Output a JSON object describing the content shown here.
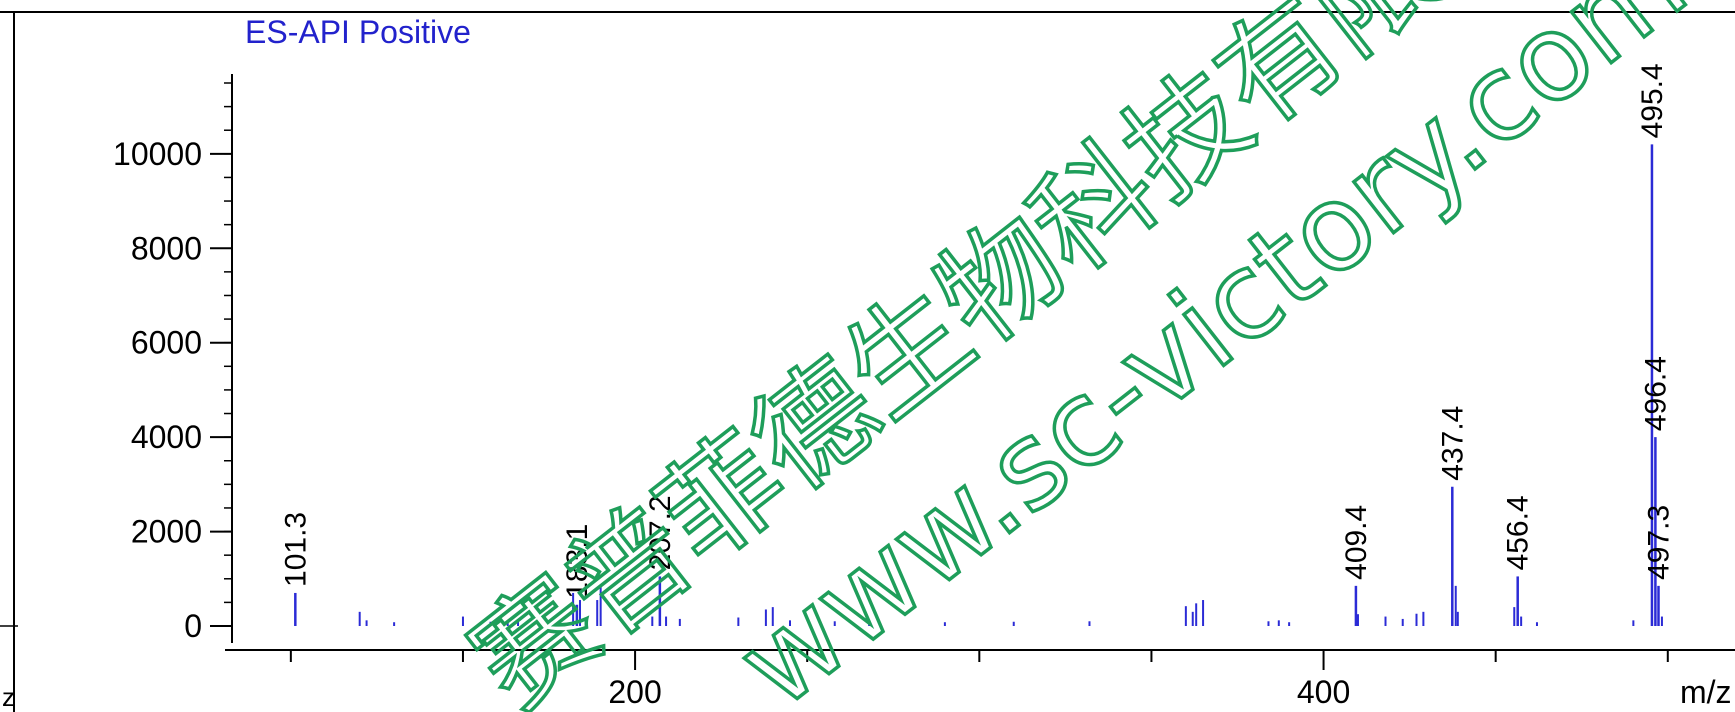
{
  "chart_data": {
    "type": "bar",
    "title": "ES-API Positive",
    "xlabel": "m/z",
    "ylabel": "",
    "xlim": [
      80,
      505
    ],
    "ylim": [
      0,
      11500
    ],
    "x_ticks": [
      200,
      400
    ],
    "x_minor_step": 50,
    "y_ticks": [
      0,
      2000,
      4000,
      6000,
      8000,
      10000
    ],
    "y_tick_labels": [
      "0",
      "2000",
      "4000",
      "6000",
      "8000",
      "10000"
    ],
    "y_minor_step": 500,
    "bar_color": "#2b2bd6",
    "peaks": [
      {
        "x": 101.3,
        "y": 700,
        "label": "101.3"
      },
      {
        "x": 183.1,
        "y": 450,
        "label": "183.1"
      },
      {
        "x": 207.2,
        "y": 1050,
        "label": "207.2"
      },
      {
        "x": 409.4,
        "y": 850,
        "label": "409.4"
      },
      {
        "x": 437.4,
        "y": 2950,
        "label": "437.4"
      },
      {
        "x": 456.4,
        "y": 1050,
        "label": "456.4"
      },
      {
        "x": 495.4,
        "y": 10200,
        "label": "495.4"
      },
      {
        "x": 496.4,
        "y": 4000,
        "label": "496.4"
      },
      {
        "x": 497.3,
        "y": 850,
        "label": "497.3"
      }
    ],
    "minor_peaks": [
      {
        "x": 120,
        "y": 300
      },
      {
        "x": 122,
        "y": 120
      },
      {
        "x": 130,
        "y": 80
      },
      {
        "x": 150,
        "y": 200
      },
      {
        "x": 158,
        "y": 90
      },
      {
        "x": 163,
        "y": 80
      },
      {
        "x": 166,
        "y": 100
      },
      {
        "x": 182,
        "y": 700
      },
      {
        "x": 184,
        "y": 550
      },
      {
        "x": 186,
        "y": 150
      },
      {
        "x": 189,
        "y": 550
      },
      {
        "x": 190,
        "y": 850
      },
      {
        "x": 205,
        "y": 200
      },
      {
        "x": 209,
        "y": 200
      },
      {
        "x": 213,
        "y": 150
      },
      {
        "x": 230,
        "y": 180
      },
      {
        "x": 238,
        "y": 350
      },
      {
        "x": 240,
        "y": 400
      },
      {
        "x": 245,
        "y": 120
      },
      {
        "x": 258,
        "y": 100
      },
      {
        "x": 268,
        "y": 80
      },
      {
        "x": 290,
        "y": 80
      },
      {
        "x": 310,
        "y": 90
      },
      {
        "x": 332,
        "y": 100
      },
      {
        "x": 360,
        "y": 420
      },
      {
        "x": 362,
        "y": 300
      },
      {
        "x": 363,
        "y": 480
      },
      {
        "x": 365,
        "y": 550
      },
      {
        "x": 384,
        "y": 100
      },
      {
        "x": 387,
        "y": 120
      },
      {
        "x": 390,
        "y": 80
      },
      {
        "x": 410,
        "y": 250
      },
      {
        "x": 418,
        "y": 200
      },
      {
        "x": 423,
        "y": 150
      },
      {
        "x": 427,
        "y": 260
      },
      {
        "x": 429,
        "y": 300
      },
      {
        "x": 438.4,
        "y": 850
      },
      {
        "x": 439,
        "y": 300
      },
      {
        "x": 455.4,
        "y": 400
      },
      {
        "x": 457.4,
        "y": 200
      },
      {
        "x": 462,
        "y": 80
      },
      {
        "x": 490,
        "y": 120
      },
      {
        "x": 498.3,
        "y": 200
      }
    ]
  },
  "y_axis_stub_label": "z",
  "watermark": {
    "company": "赛普菲德生物科技有限公司",
    "url": "www.sc-victory.com",
    "color": "#1e9e5a"
  }
}
